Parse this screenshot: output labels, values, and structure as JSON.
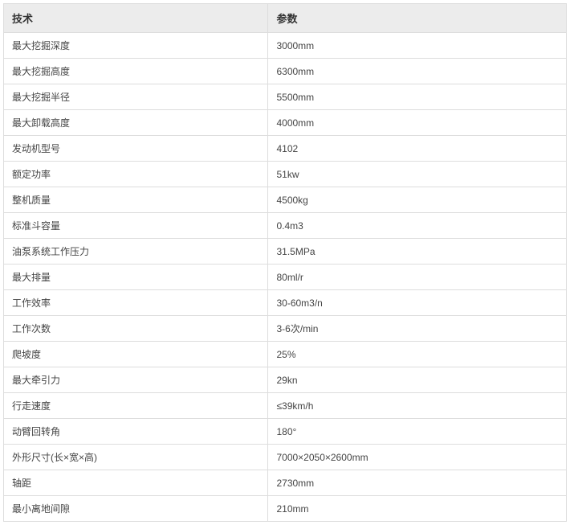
{
  "table": {
    "columns": [
      "技术",
      "参数"
    ],
    "rows": [
      [
        "最大挖掘深度",
        "3000mm"
      ],
      [
        "最大挖掘高度",
        "6300mm"
      ],
      [
        "最大挖掘半径",
        "5500mm"
      ],
      [
        "最大卸载高度",
        "4000mm"
      ],
      [
        "发动机型号",
        "4102"
      ],
      [
        "额定功率",
        "51kw"
      ],
      [
        "整机质量",
        "4500kg"
      ],
      [
        "标准斗容量",
        "0.4m3"
      ],
      [
        "油泵系统工作压力",
        "31.5MPa"
      ],
      [
        "最大排量",
        "80ml/r"
      ],
      [
        "工作效率",
        "30-60m3/n"
      ],
      [
        "工作次数",
        "3-6次/min"
      ],
      [
        "爬坡度",
        "25%"
      ],
      [
        "最大牵引力",
        "29kn"
      ],
      [
        "行走速度",
        "≤39km/h"
      ],
      [
        "动臂回转角",
        "180°"
      ],
      [
        "外形尺寸(长×宽×高)",
        "7000×2050×2600mm"
      ],
      [
        "轴距",
        "2730mm"
      ],
      [
        "最小离地间隙",
        "210mm"
      ]
    ],
    "header_bg": "#ececec",
    "border_color": "#dddddd",
    "text_color": "#444444",
    "header_text_color": "#333333",
    "font_size": 12,
    "header_font_size": 13,
    "col_widths": [
      "47%",
      "53%"
    ]
  }
}
